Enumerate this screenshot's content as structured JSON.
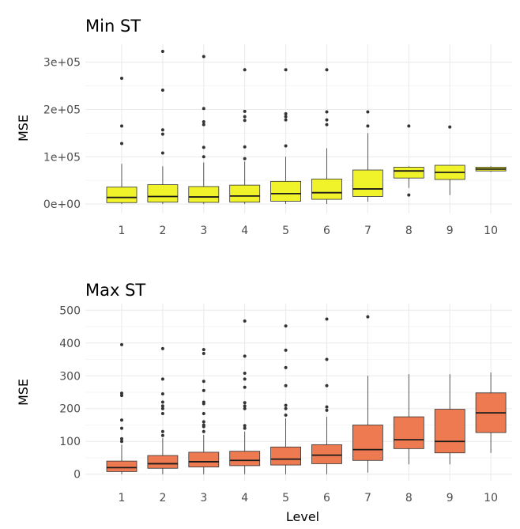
{
  "chart_data": [
    {
      "type": "boxplot",
      "title": "Min ST",
      "xlabel": "",
      "ylabel": "MSE",
      "ylim": [
        -20000,
        338000
      ],
      "yticks": [
        0,
        100000,
        200000,
        300000
      ],
      "ytick_labels": [
        "0e+00",
        "1e+05",
        "2e+05",
        "3e+05"
      ],
      "fill_color": "#f0f32a",
      "categories": [
        "1",
        "2",
        "3",
        "4",
        "5",
        "6",
        "7",
        "8",
        "9",
        "10"
      ],
      "boxes": [
        {
          "q1": 3000,
          "median": 14000,
          "q3": 36000,
          "low": 0,
          "high": 85000,
          "outliers": [
            128000,
            165000,
            266000
          ]
        },
        {
          "q1": 4000,
          "median": 16000,
          "q3": 41000,
          "low": 0,
          "high": 80000,
          "outliers": [
            108000,
            148000,
            157000,
            241000,
            323000
          ]
        },
        {
          "q1": 3500,
          "median": 15000,
          "q3": 37000,
          "low": 0,
          "high": 88000,
          "outliers": [
            100000,
            120000,
            168000,
            174000,
            202000,
            312000
          ]
        },
        {
          "q1": 4000,
          "median": 17000,
          "q3": 40000,
          "low": 0,
          "high": 90000,
          "outliers": [
            96000,
            121000,
            177000,
            185000,
            196000,
            284000
          ]
        },
        {
          "q1": 6000,
          "median": 22000,
          "q3": 48000,
          "low": 0,
          "high": 100000,
          "outliers": [
            123000,
            178000,
            185000,
            191000,
            284000
          ]
        },
        {
          "q1": 10000,
          "median": 24000,
          "q3": 53000,
          "low": 0,
          "high": 118000,
          "outliers": [
            168000,
            178000,
            195000,
            284000
          ]
        },
        {
          "q1": 16000,
          "median": 32000,
          "q3": 72000,
          "low": 5000,
          "high": 150000,
          "outliers": [
            165000,
            195000
          ]
        },
        {
          "q1": 55000,
          "median": 70000,
          "q3": 78000,
          "low": 34000,
          "high": 80000,
          "outliers": [
            19000,
            165000
          ]
        },
        {
          "q1": 52000,
          "median": 67000,
          "q3": 82000,
          "low": 19000,
          "high": 82000,
          "outliers": [
            163000
          ]
        },
        {
          "q1": 70000,
          "median": 74000,
          "q3": 78000,
          "low": 68000,
          "high": 80000,
          "outliers": []
        }
      ]
    },
    {
      "type": "boxplot",
      "title": "Max ST",
      "xlabel": "Level",
      "ylabel": "MSE",
      "ylim": [
        -20,
        520
      ],
      "yticks": [
        0,
        100,
        200,
        300,
        400,
        500
      ],
      "ytick_labels": [
        "0",
        "100",
        "200",
        "300",
        "400",
        "500"
      ],
      "fill_color": "#ee7a52",
      "categories": [
        "1",
        "2",
        "3",
        "4",
        "5",
        "6",
        "7",
        "8",
        "9",
        "10"
      ],
      "boxes": [
        {
          "q1": 8,
          "median": 20,
          "q3": 40,
          "low": 0,
          "high": 90,
          "outliers": [
            100,
            108,
            140,
            165,
            240,
            247,
            395
          ]
        },
        {
          "q1": 18,
          "median": 32,
          "q3": 57,
          "low": 0,
          "high": 110,
          "outliers": [
            118,
            130,
            185,
            200,
            208,
            220,
            245,
            290,
            383
          ]
        },
        {
          "q1": 22,
          "median": 38,
          "q3": 67,
          "low": 0,
          "high": 120,
          "outliers": [
            130,
            145,
            150,
            160,
            185,
            215,
            220,
            255,
            283,
            368,
            380
          ]
        },
        {
          "q1": 26,
          "median": 42,
          "q3": 70,
          "low": 0,
          "high": 130,
          "outliers": [
            140,
            148,
            200,
            208,
            218,
            265,
            290,
            308,
            360,
            467
          ]
        },
        {
          "q1": 28,
          "median": 46,
          "q3": 83,
          "low": 0,
          "high": 170,
          "outliers": [
            180,
            200,
            210,
            270,
            325,
            378,
            452
          ]
        },
        {
          "q1": 32,
          "median": 58,
          "q3": 90,
          "low": 0,
          "high": 175,
          "outliers": [
            195,
            205,
            270,
            350,
            473
          ]
        },
        {
          "q1": 42,
          "median": 75,
          "q3": 150,
          "low": 5,
          "high": 300,
          "outliers": [
            480
          ]
        },
        {
          "q1": 78,
          "median": 105,
          "q3": 175,
          "low": 30,
          "high": 305,
          "outliers": []
        },
        {
          "q1": 65,
          "median": 100,
          "q3": 198,
          "low": 30,
          "high": 305,
          "outliers": []
        },
        {
          "q1": 127,
          "median": 187,
          "q3": 248,
          "low": 65,
          "high": 310,
          "outliers": []
        }
      ]
    }
  ]
}
